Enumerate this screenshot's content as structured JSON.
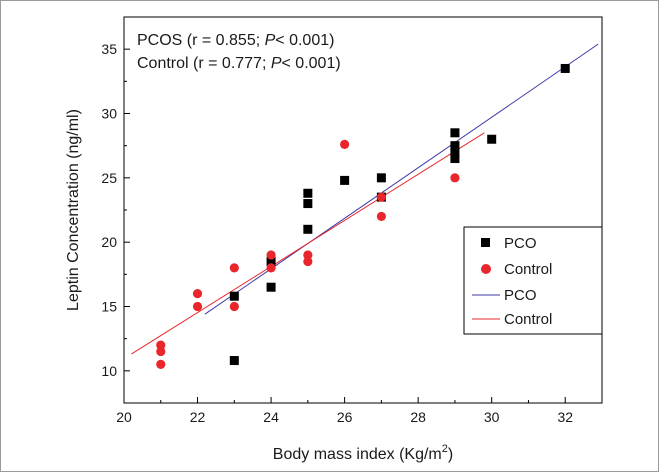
{
  "chart_data": {
    "type": "scatter",
    "xlabel": "Body mass index (Kg/m",
    "xlabel_sup": "2",
    "xlabel_end": ")",
    "ylabel": "Leptin Concentration (ng/ml)",
    "xlim": [
      20,
      33
    ],
    "ylim": [
      7.5,
      37.5
    ],
    "x_ticks": [
      20,
      22,
      24,
      26,
      28,
      30,
      32
    ],
    "y_ticks": [
      10,
      15,
      20,
      25,
      30,
      35
    ],
    "grid": false,
    "legend_position": "center-right",
    "annotations": [
      {
        "name": "PCOS",
        "open": " (r = 0.855; ",
        "p": "P",
        "close": "< 0.001)"
      },
      {
        "name": "Control",
        "open": " (r = 0.777; ",
        "p": "P",
        "close": "< 0.001)"
      }
    ],
    "legend": [
      {
        "label": "PCO",
        "kind": "square",
        "color": "#000000"
      },
      {
        "label": "Control",
        "kind": "circle",
        "color": "#e8262b"
      },
      {
        "label": "PCO",
        "kind": "line",
        "color": "#3b3ba8"
      },
      {
        "label": "Control",
        "kind": "line",
        "color": "#e8262b"
      }
    ],
    "series": [
      {
        "marker": "square",
        "color": "#000000",
        "points": [
          [
            23,
            15.8
          ],
          [
            23,
            10.8
          ],
          [
            24,
            18.5
          ],
          [
            24,
            16.5
          ],
          [
            25,
            23.8
          ],
          [
            25,
            23
          ],
          [
            25,
            21
          ],
          [
            26,
            24.8
          ],
          [
            27,
            25
          ],
          [
            27,
            23.5
          ],
          [
            29,
            28.5
          ],
          [
            29,
            27.5
          ],
          [
            29,
            27
          ],
          [
            29,
            26.5
          ],
          [
            30,
            28
          ],
          [
            32,
            33.5
          ]
        ]
      },
      {
        "marker": "circle",
        "color": "#e8262b",
        "points": [
          [
            21,
            12
          ],
          [
            21,
            11.5
          ],
          [
            21,
            10.5
          ],
          [
            22,
            16
          ],
          [
            22,
            15
          ],
          [
            23,
            18
          ],
          [
            23,
            15
          ],
          [
            24,
            19
          ],
          [
            24,
            18
          ],
          [
            25,
            19
          ],
          [
            25,
            18.5
          ],
          [
            26,
            27.6
          ],
          [
            27,
            22
          ],
          [
            27,
            23.5
          ],
          [
            29,
            25
          ]
        ]
      }
    ],
    "fit_lines": [
      {
        "color": "#3b3ba8",
        "x": [
          22.2,
          32.9
        ],
        "y": [
          14.4,
          35.4
        ]
      },
      {
        "color": "#e8262b",
        "x": [
          20.2,
          29.8
        ],
        "y": [
          11.3,
          28.5
        ]
      }
    ]
  }
}
